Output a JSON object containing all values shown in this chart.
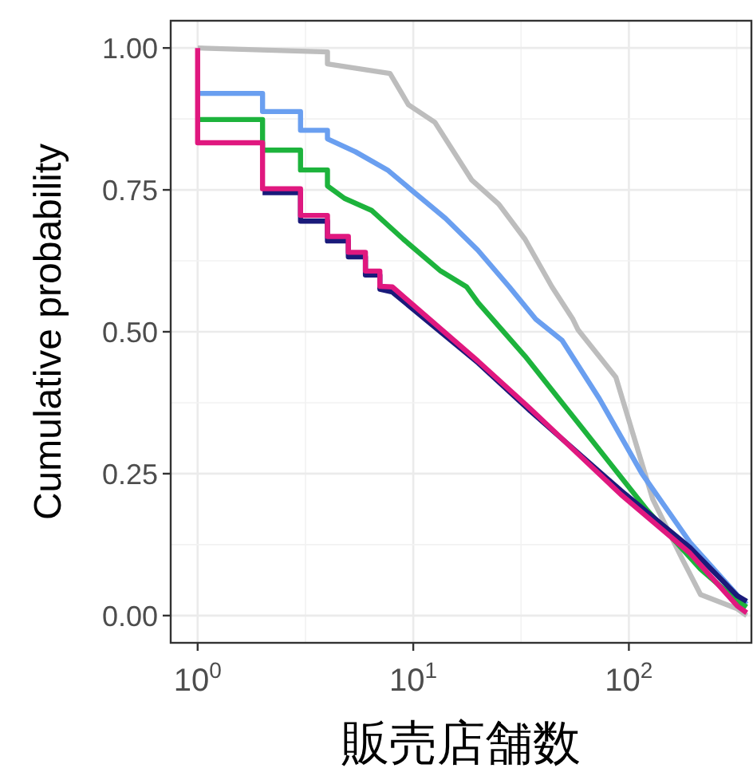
{
  "chart_data": {
    "type": "line",
    "xlabel": "販売店舗数",
    "ylabel": "Cumulative probability",
    "log": "x",
    "grid": true,
    "xlim": [
      0.75,
      370
    ],
    "ylim": [
      -0.048,
      1.048
    ],
    "xticks": [
      {
        "value": 1,
        "label": "10$^{0}$"
      },
      {
        "value": 10,
        "label": "10$^{1}$"
      },
      {
        "value": 100,
        "label": "10$^{2}$"
      }
    ],
    "yticks": [
      {
        "value": 0,
        "label": "0.00"
      },
      {
        "value": 0.25,
        "label": "0.25"
      },
      {
        "value": 0.5,
        "label": "0.50"
      },
      {
        "value": 0.75,
        "label": "0.75"
      },
      {
        "value": 1,
        "label": "1.00"
      }
    ],
    "series": [
      {
        "color": "#bdbdbd",
        "x": [
          1,
          4,
          4,
          7.8,
          9.5,
          12.6,
          18.7,
          24.9,
          33,
          44,
          55,
          58,
          87,
          129,
          176,
          215,
          318,
          352
        ],
        "values": [
          1.0,
          0.993,
          0.972,
          0.955,
          0.9,
          0.869,
          0.767,
          0.725,
          0.663,
          0.579,
          0.522,
          0.504,
          0.42,
          0.205,
          0.101,
          0.037,
          0.012,
          0.0
        ]
      },
      {
        "color": "#6a9ff0",
        "x": [
          1,
          2,
          2,
          3,
          3,
          4,
          4,
          5.4,
          7.6,
          10,
          14.1,
          19.9,
          27.9,
          37,
          49,
          73,
          115,
          192,
          318,
          352
        ],
        "values": [
          0.92,
          0.92,
          0.888,
          0.888,
          0.855,
          0.855,
          0.84,
          0.817,
          0.785,
          0.747,
          0.7,
          0.644,
          0.579,
          0.522,
          0.485,
          0.382,
          0.25,
          0.129,
          0.036,
          0.02
        ]
      },
      {
        "color": "#1db33c",
        "x": [
          1,
          2,
          2,
          3,
          3,
          4,
          4,
          4.8,
          6.4,
          9,
          13.4,
          17.7,
          20,
          33,
          62,
          122,
          215,
          318,
          352
        ],
        "values": [
          0.874,
          0.874,
          0.82,
          0.82,
          0.785,
          0.785,
          0.757,
          0.735,
          0.714,
          0.663,
          0.607,
          0.579,
          0.551,
          0.457,
          0.326,
          0.185,
          0.082,
          0.026,
          0.015
        ]
      },
      {
        "color": "#1a1a7a",
        "x": [
          2,
          3,
          3,
          4,
          4,
          5,
          5,
          6,
          6,
          7,
          7,
          8,
          20,
          35,
          92,
          192,
          318,
          352
        ],
        "values": [
          0.745,
          0.745,
          0.695,
          0.695,
          0.66,
          0.66,
          0.632,
          0.632,
          0.6,
          0.6,
          0.575,
          0.57,
          0.445,
          0.36,
          0.22,
          0.12,
          0.035,
          0.025
        ]
      },
      {
        "color": "#e0187f",
        "x": [
          1,
          1,
          2,
          2,
          3,
          3,
          4,
          4,
          5,
          5,
          6,
          6,
          7,
          7,
          8,
          20,
          35,
          92,
          192,
          318,
          352
        ],
        "values": [
          1.0,
          0.833,
          0.833,
          0.752,
          0.752,
          0.705,
          0.705,
          0.668,
          0.668,
          0.64,
          0.64,
          0.607,
          0.607,
          0.58,
          0.579,
          0.448,
          0.364,
          0.213,
          0.11,
          0.017,
          0.005
        ]
      }
    ]
  }
}
